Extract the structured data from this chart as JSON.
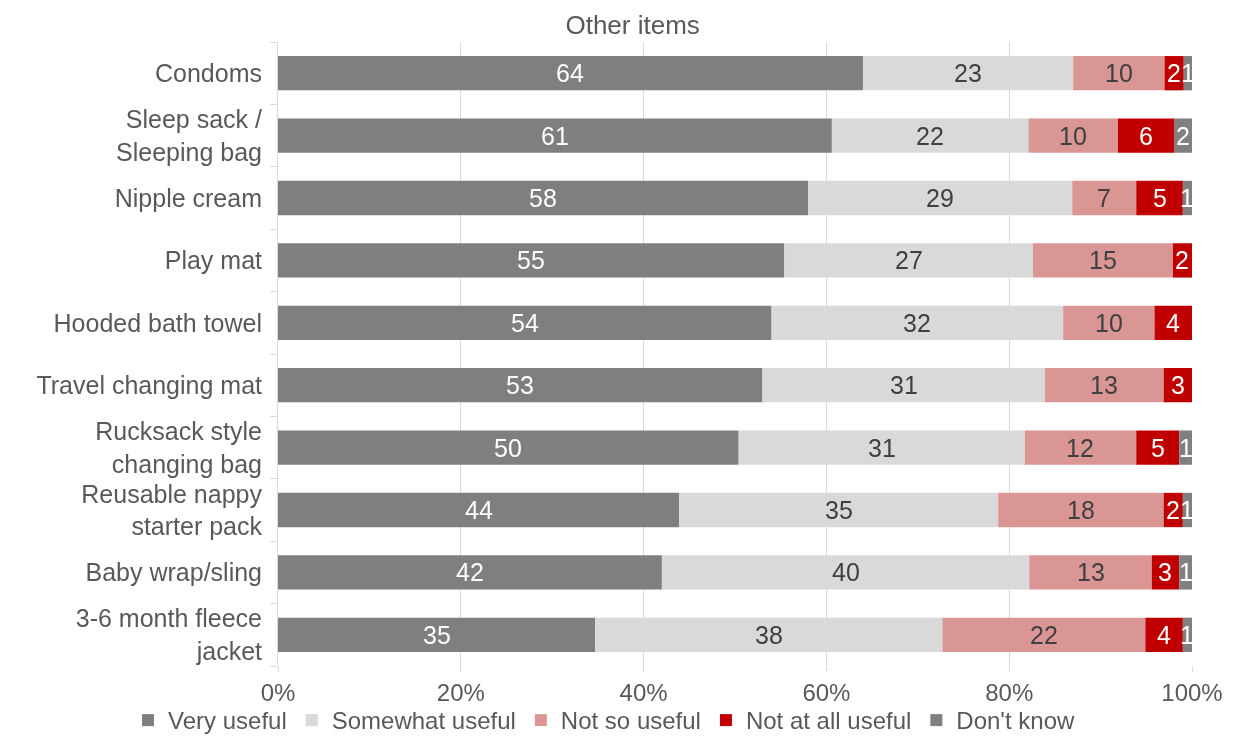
{
  "chart_data": {
    "type": "bar",
    "orientation": "horizontal",
    "stacked": true,
    "title": "Other items",
    "categories": [
      "Condoms",
      "Sleep sack / Sleeping bag",
      "Nipple cream",
      "Play mat",
      "Hooded bath towel",
      "Travel changing mat",
      "Rucksack style changing bag",
      "Reusable nappy starter pack",
      "Baby wrap/sling",
      "3-6 month fleece jacket"
    ],
    "series": [
      {
        "name": "Very useful",
        "color": "#7f7f7f",
        "values": [
          64.0,
          60.6,
          58.0,
          55.4,
          54.0,
          53.0,
          50.4,
          43.9,
          42.0,
          34.7
        ],
        "value_labels": [
          "64",
          "61",
          "58",
          "55",
          "54",
          "53",
          "50",
          "44",
          "42",
          "35"
        ]
      },
      {
        "name": "Somewhat useful",
        "color": "#d9d9d9",
        "values": [
          23.0,
          21.5,
          28.9,
          27.2,
          31.9,
          30.9,
          31.3,
          34.9,
          40.2,
          38.0
        ],
        "value_labels": [
          "23",
          "22",
          "29",
          "27",
          "32",
          "31",
          "31",
          "35",
          "40",
          "38"
        ]
      },
      {
        "name": "Not so useful",
        "color": "#d99694",
        "values": [
          10.0,
          9.8,
          7.0,
          15.3,
          10.0,
          13.0,
          12.2,
          18.1,
          13.4,
          22.2
        ],
        "value_labels": [
          "10",
          "10",
          "7",
          "15",
          "10",
          "13",
          "12",
          "18",
          "13",
          "22"
        ]
      },
      {
        "name": "Not at all useful",
        "color": "#c00000",
        "values": [
          2.1,
          6.2,
          5.1,
          2.1,
          4.1,
          3.1,
          4.7,
          2.1,
          3.0,
          4.1
        ],
        "value_labels": [
          "2",
          "6",
          "5",
          "2",
          "4",
          "3",
          "5",
          "2",
          "3",
          "4"
        ]
      },
      {
        "name": "Don't know",
        "color": "#808080",
        "values": [
          0.9,
          1.9,
          1.0,
          null,
          null,
          null,
          1.4,
          1.0,
          1.4,
          1.0
        ],
        "value_labels": [
          "1",
          "2",
          "1",
          null,
          null,
          null,
          "1",
          "1",
          "1",
          "1"
        ]
      }
    ],
    "xlim": [
      0,
      100
    ],
    "xticks": [
      {
        "value": 0,
        "label": "0%"
      },
      {
        "value": 20,
        "label": "20%"
      },
      {
        "value": 40,
        "label": "40%"
      },
      {
        "value": 60,
        "label": "60%"
      },
      {
        "value": 80,
        "label": "80%"
      },
      {
        "value": 100,
        "label": "100%"
      }
    ],
    "grid": "x",
    "legend": "bottom"
  }
}
